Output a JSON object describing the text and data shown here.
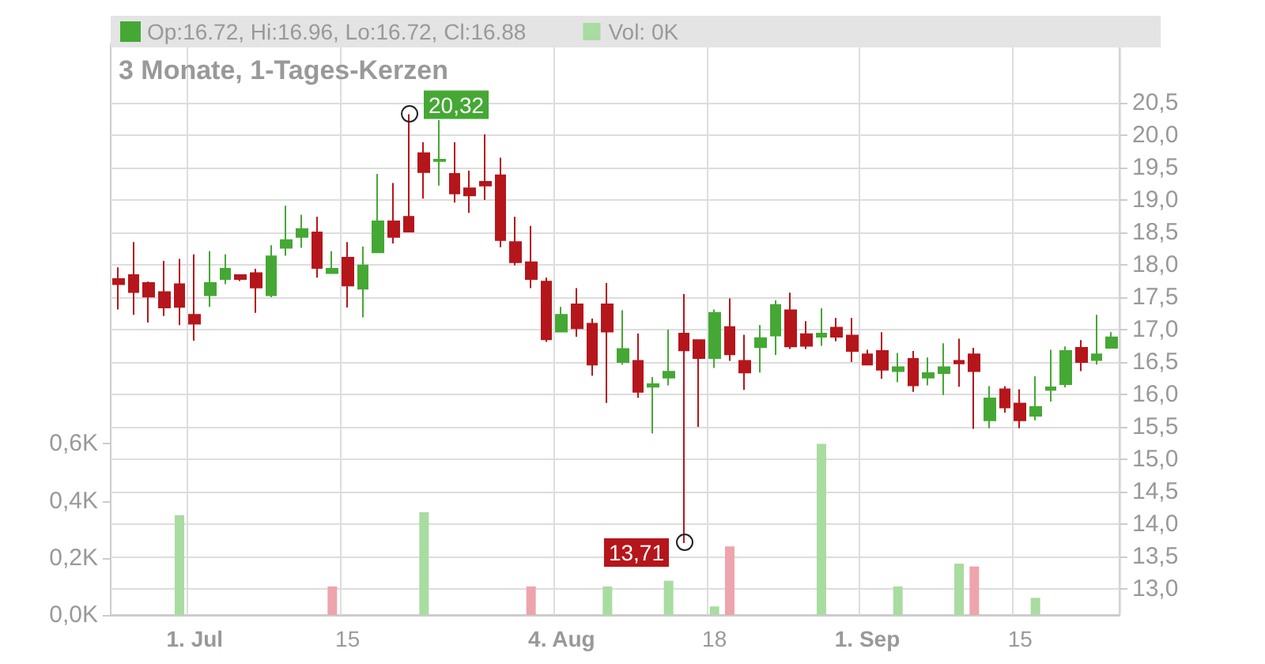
{
  "chart_data": {
    "type": "candlestick",
    "title": "3 Monate, 1-Tages-Kerzen",
    "categories": [
      null,
      null,
      null,
      null,
      null,
      "1. Jul",
      null,
      null,
      null,
      null,
      null,
      null,
      null,
      null,
      null,
      "15",
      null,
      null,
      null,
      null,
      null,
      null,
      null,
      null,
      null,
      null,
      null,
      null,
      null,
      "4. Aug",
      null,
      null,
      null,
      null,
      null,
      null,
      null,
      null,
      null,
      "18",
      null,
      null,
      null,
      null,
      null,
      null,
      null,
      null,
      null,
      "1. Sep",
      null,
      null,
      null,
      null,
      null,
      null,
      null,
      null,
      null,
      "15",
      null,
      null,
      null,
      null,
      null,
      null
    ],
    "series": [
      {
        "name": "Op:16.72, Hi:16.96, Lo:16.72, Cl:16.88",
        "color": "#45a834",
        "colors": [
          "#b5161b",
          "#b5161b",
          "#b5161b",
          "#b5161b",
          "#b5161b",
          "#b5161b",
          "#45a834",
          "#45a834",
          "#b5161b",
          "#b5161b",
          "#45a834",
          "#45a834",
          "#45a834",
          "#b5161b",
          "#45a834",
          "#b5161b",
          "#45a834",
          "#45a834",
          "#b5161b",
          "#b5161b",
          "#b5161b",
          "#45a834",
          "#b5161b",
          "#b5161b",
          "#b5161b",
          "#b5161b",
          "#b5161b",
          "#b5161b",
          "#b5161b",
          "#45a834",
          "#b5161b",
          "#b5161b",
          "#b5161b",
          "#45a834",
          "#b5161b",
          "#45a834",
          "#45a834",
          "#b5161b",
          "#b5161b",
          "#45a834",
          "#b5161b",
          "#b5161b",
          "#45a834",
          "#45a834",
          "#b5161b",
          "#b5161b",
          "#45a834",
          "#b5161b",
          "#b5161b",
          "#b5161b",
          "#b5161b",
          "#45a834",
          "#b5161b",
          "#45a834",
          "#45a834",
          "#b5161b",
          "#b5161b",
          "#45a834",
          "#b5161b",
          "#b5161b",
          "#45a834",
          "#45a834",
          "#45a834",
          "#b5161b",
          "#45a834",
          "#45a834"
        ],
        "ohlc": [
          [
            17.78,
            17.96,
            17.31,
            17.7
          ],
          [
            17.84,
            18.35,
            17.23,
            17.58
          ],
          [
            17.72,
            17.74,
            17.11,
            17.51
          ],
          [
            17.58,
            18.06,
            17.21,
            17.34
          ],
          [
            17.7,
            18.09,
            17.07,
            17.35
          ],
          [
            17.23,
            18.16,
            16.83,
            17.09
          ],
          [
            17.53,
            18.21,
            17.35,
            17.72
          ],
          [
            17.78,
            18.16,
            17.7,
            17.94
          ],
          [
            17.84,
            17.85,
            17.75,
            17.78
          ],
          [
            17.87,
            17.94,
            17.26,
            17.65
          ],
          [
            17.53,
            18.3,
            17.5,
            18.13
          ],
          [
            18.26,
            18.91,
            18.14,
            18.38
          ],
          [
            18.43,
            18.77,
            18.26,
            18.55
          ],
          [
            18.5,
            18.74,
            17.8,
            17.95
          ],
          [
            17.87,
            18.21,
            17.86,
            17.94
          ],
          [
            18.11,
            18.35,
            17.34,
            17.68
          ],
          [
            17.63,
            18.28,
            17.19,
            17.99
          ],
          [
            18.19,
            19.4,
            18.19,
            18.67
          ],
          [
            18.67,
            19.26,
            18.33,
            18.43
          ],
          [
            18.74,
            20.32,
            18.51,
            18.51
          ],
          [
            19.72,
            19.89,
            19.02,
            19.43
          ],
          [
            19.6,
            20.23,
            19.22,
            19.62
          ],
          [
            19.4,
            19.89,
            18.96,
            19.1
          ],
          [
            19.18,
            19.45,
            18.8,
            19.07
          ],
          [
            19.28,
            20.01,
            19.0,
            19.22
          ],
          [
            19.38,
            19.65,
            18.27,
            18.38
          ],
          [
            18.35,
            18.74,
            17.99,
            18.04
          ],
          [
            18.04,
            18.6,
            17.64,
            17.78
          ],
          [
            17.74,
            17.8,
            16.81,
            16.85
          ],
          [
            16.97,
            17.35,
            16.96,
            17.23
          ],
          [
            17.39,
            17.64,
            16.89,
            17.02
          ],
          [
            17.09,
            17.17,
            16.29,
            16.46
          ],
          [
            17.39,
            17.72,
            15.87,
            16.97
          ],
          [
            16.5,
            17.3,
            16.46,
            16.7
          ],
          [
            16.52,
            16.94,
            15.95,
            16.04
          ],
          [
            16.12,
            16.27,
            15.4,
            16.16
          ],
          [
            16.26,
            17.0,
            16.14,
            16.35
          ],
          [
            16.94,
            17.55,
            13.71,
            16.68
          ],
          [
            16.84,
            16.84,
            15.5,
            16.56
          ],
          [
            16.56,
            17.31,
            16.41,
            17.26
          ],
          [
            17.04,
            17.48,
            16.52,
            16.62
          ],
          [
            16.52,
            16.92,
            16.07,
            16.34
          ],
          [
            16.73,
            17.07,
            16.34,
            16.87
          ],
          [
            16.91,
            17.45,
            16.61,
            17.38
          ],
          [
            17.3,
            17.57,
            16.7,
            16.74
          ],
          [
            16.93,
            17.13,
            16.7,
            16.75
          ],
          [
            16.89,
            17.33,
            16.75,
            16.94
          ],
          [
            17.03,
            17.18,
            16.82,
            16.89
          ],
          [
            16.91,
            17.18,
            16.5,
            16.67
          ],
          [
            16.62,
            16.69,
            16.46,
            16.46
          ],
          [
            16.67,
            16.96,
            16.24,
            16.38
          ],
          [
            16.36,
            16.64,
            16.19,
            16.42
          ],
          [
            16.55,
            16.67,
            16.04,
            16.14
          ],
          [
            16.26,
            16.57,
            16.14,
            16.33
          ],
          [
            16.33,
            16.79,
            15.99,
            16.42
          ],
          [
            16.52,
            16.86,
            16.12,
            16.48
          ],
          [
            16.62,
            16.72,
            15.47,
            16.36
          ],
          [
            15.6,
            16.13,
            15.48,
            15.94
          ],
          [
            16.08,
            16.13,
            15.72,
            15.8
          ],
          [
            15.86,
            16.08,
            15.48,
            15.6
          ],
          [
            15.67,
            16.28,
            15.6,
            15.81
          ],
          [
            16.07,
            16.69,
            15.89,
            16.11
          ],
          [
            16.16,
            16.74,
            16.11,
            16.67
          ],
          [
            16.72,
            16.84,
            16.36,
            16.5
          ],
          [
            16.53,
            17.23,
            16.46,
            16.62
          ],
          [
            16.72,
            16.96,
            16.72,
            16.88
          ]
        ]
      },
      {
        "type": "bar",
        "axis": "y2",
        "name": "Vol: 0K",
        "color": "#a8dca0",
        "values": [
          null,
          null,
          null,
          null,
          0.35,
          null,
          null,
          null,
          null,
          null,
          null,
          null,
          null,
          null,
          0.1,
          null,
          null,
          null,
          null,
          null,
          0.36,
          null,
          null,
          null,
          null,
          null,
          null,
          0.1,
          null,
          null,
          null,
          null,
          0.1,
          null,
          null,
          null,
          0.12,
          null,
          null,
          0.03,
          0.24,
          null,
          null,
          null,
          null,
          null,
          0.6,
          null,
          null,
          null,
          null,
          0.1,
          null,
          null,
          null,
          0.18,
          0.17,
          null,
          null,
          null,
          0.06,
          null,
          null,
          null,
          null,
          null
        ],
        "colors": [
          null,
          null,
          null,
          null,
          "#a8dca0",
          null,
          null,
          null,
          null,
          null,
          null,
          null,
          null,
          null,
          "#eea4ac",
          null,
          null,
          null,
          null,
          null,
          "#a8dca0",
          null,
          null,
          null,
          null,
          null,
          null,
          "#eea4ac",
          null,
          null,
          null,
          null,
          "#a8dca0",
          null,
          null,
          null,
          "#a8dca0",
          null,
          null,
          "#a8dca0",
          "#eea4ac",
          null,
          null,
          null,
          null,
          null,
          "#a8dca0",
          null,
          null,
          null,
          null,
          "#a8dca0",
          null,
          null,
          null,
          "#a8dca0",
          "#eea4ac",
          null,
          null,
          null,
          "#a8dca0",
          null,
          null,
          null,
          null,
          null
        ]
      }
    ],
    "ylim": [
      12.6,
      21.4
    ],
    "yticks": [
      {
        "value": 13,
        "label": "13,0"
      },
      {
        "value": 13.5,
        "label": "13,5"
      },
      {
        "value": 14,
        "label": "14,0"
      },
      {
        "value": 14.5,
        "label": "14,5"
      },
      {
        "value": 15,
        "label": "15,0"
      },
      {
        "value": 15.5,
        "label": "15,5"
      },
      {
        "value": 16,
        "label": "16,0"
      },
      {
        "value": 16.5,
        "label": "16,5"
      },
      {
        "value": 17,
        "label": "17,0"
      },
      {
        "value": 17.5,
        "label": "17,5"
      },
      {
        "value": 18,
        "label": "18,0"
      },
      {
        "value": 18.5,
        "label": "18,5"
      },
      {
        "value": 19,
        "label": "19,0"
      },
      {
        "value": 19.5,
        "label": "19,5"
      },
      {
        "value": 20,
        "label": "20,0"
      },
      {
        "value": 20.5,
        "label": "20,5"
      }
    ],
    "y2lim": [
      0,
      2
    ],
    "y2ticks": [
      {
        "value": 0,
        "label": "0,0K"
      },
      {
        "value": 0.2,
        "label": "0,2K"
      },
      {
        "value": 0.4,
        "label": "0,4K"
      },
      {
        "value": 0.6,
        "label": "0,6K"
      }
    ],
    "annotations": [
      "20,32",
      "13,71"
    ],
    "grid": true,
    "legend": "top left"
  }
}
